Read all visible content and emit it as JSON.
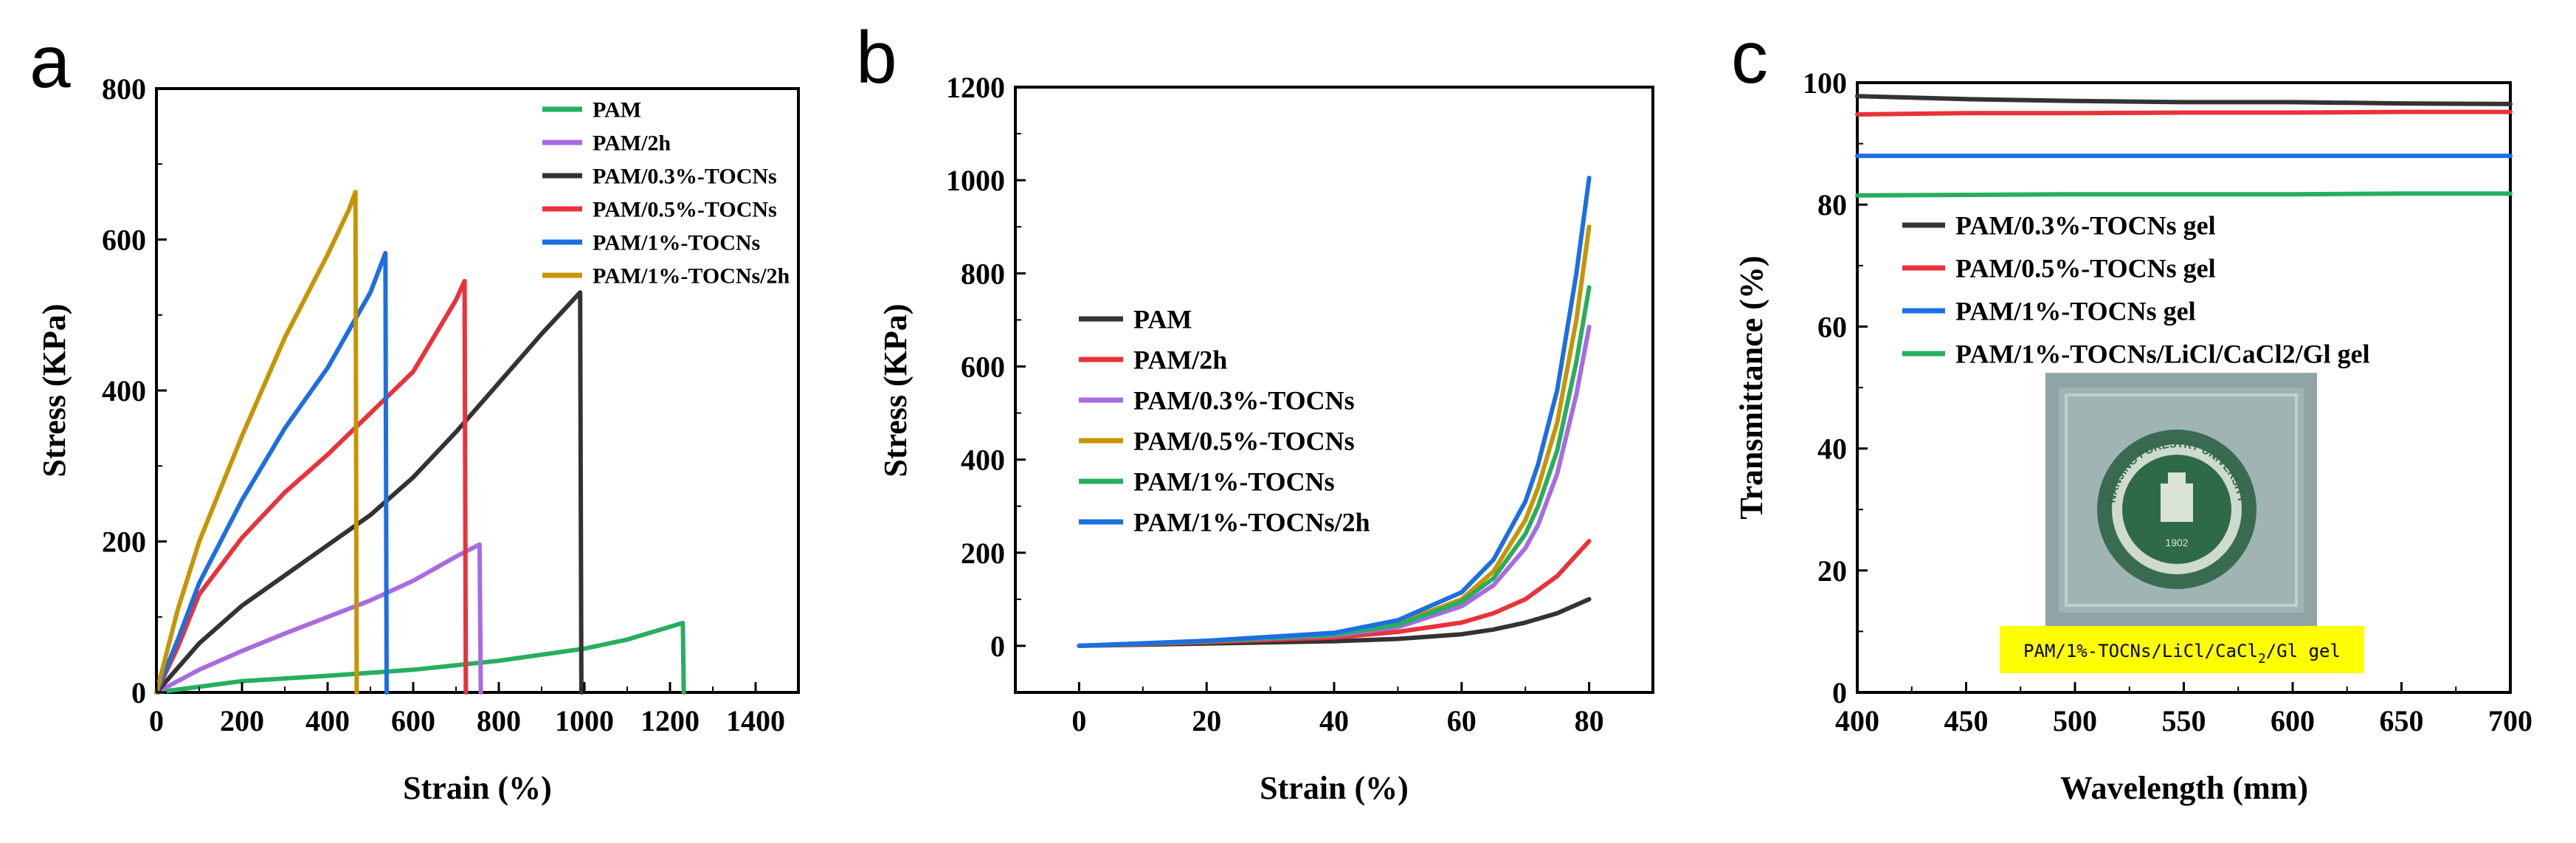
{
  "panels": [
    {
      "letter": "a"
    },
    {
      "letter": "b"
    },
    {
      "letter": "c"
    }
  ],
  "colors": {
    "green": "#27ae60",
    "purple": "#a86be0",
    "black": "#333333",
    "red": "#e8333a",
    "blue": "#1c6fe0",
    "gold": "#c79500",
    "caption_bg": "#ffff00"
  },
  "chart_data": [
    {
      "type": "line",
      "panel": "a",
      "title": "",
      "xlabel": "Strain (%)",
      "ylabel": "Stress (KPa)",
      "xlim": [
        0,
        1500
      ],
      "ylim": [
        0,
        800
      ],
      "xticks": [
        0,
        200,
        400,
        600,
        800,
        1000,
        1200,
        1400
      ],
      "yticks": [
        0,
        200,
        400,
        600,
        800
      ],
      "legend": "top-right",
      "series": [
        {
          "name": "PAM",
          "color": "green",
          "x": [
            0,
            200,
            400,
            600,
            800,
            1000,
            1100,
            1230,
            1232
          ],
          "y": [
            0,
            15,
            22,
            30,
            42,
            58,
            70,
            92,
            0
          ]
        },
        {
          "name": "PAM/2h",
          "color": "purple",
          "x": [
            0,
            100,
            200,
            300,
            400,
            500,
            600,
            700,
            755,
            758
          ],
          "y": [
            0,
            30,
            55,
            78,
            100,
            122,
            148,
            180,
            196,
            0
          ]
        },
        {
          "name": "PAM/0.3%-TOCNs",
          "color": "black",
          "x": [
            0,
            100,
            200,
            300,
            400,
            500,
            600,
            700,
            800,
            900,
            990,
            993
          ],
          "y": [
            0,
            65,
            115,
            155,
            195,
            235,
            285,
            345,
            410,
            475,
            530,
            0
          ]
        },
        {
          "name": "PAM/0.5%-TOCNs",
          "color": "red",
          "x": [
            0,
            50,
            100,
            200,
            300,
            400,
            500,
            600,
            700,
            720,
            723
          ],
          "y": [
            0,
            60,
            130,
            205,
            265,
            315,
            370,
            425,
            520,
            545,
            0
          ]
        },
        {
          "name": "PAM/1%-TOCNs",
          "color": "blue",
          "x": [
            0,
            50,
            100,
            200,
            300,
            400,
            500,
            535,
            538
          ],
          "y": [
            0,
            70,
            145,
            255,
            350,
            430,
            530,
            582,
            0
          ]
        },
        {
          "name": "PAM/1%-TOCNs/2h",
          "color": "gold",
          "x": [
            0,
            50,
            100,
            200,
            300,
            400,
            450,
            465,
            468
          ],
          "y": [
            0,
            110,
            200,
            340,
            470,
            580,
            640,
            663,
            0
          ]
        }
      ]
    },
    {
      "type": "line",
      "panel": "b",
      "title": "",
      "xlabel": "Strain (%)",
      "ylabel": "Stress (KPa)",
      "xlim": [
        -10,
        90
      ],
      "ylim": [
        -100,
        1200
      ],
      "xticks": [
        0,
        20,
        40,
        60,
        80
      ],
      "yticks": [
        0,
        200,
        400,
        600,
        800,
        1000,
        1200
      ],
      "legend": "center-left",
      "series": [
        {
          "name": "PAM",
          "color": "black",
          "x": [
            0,
            20,
            40,
            50,
            60,
            65,
            70,
            75,
            80
          ],
          "y": [
            0,
            5,
            10,
            15,
            25,
            35,
            50,
            70,
            100
          ]
        },
        {
          "name": "PAM/2h",
          "color": "red",
          "x": [
            0,
            20,
            40,
            50,
            60,
            65,
            70,
            75,
            80
          ],
          "y": [
            0,
            8,
            18,
            30,
            50,
            70,
            100,
            150,
            225
          ]
        },
        {
          "name": "PAM/0.3%-TOCNs",
          "color": "purple",
          "x": [
            0,
            20,
            40,
            50,
            60,
            65,
            70,
            72,
            75,
            78,
            80
          ],
          "y": [
            0,
            10,
            22,
            40,
            85,
            130,
            210,
            260,
            370,
            540,
            685
          ]
        },
        {
          "name": "PAM/0.5%-TOCNs",
          "color": "gold",
          "x": [
            0,
            20,
            40,
            50,
            60,
            65,
            70,
            72,
            75,
            78,
            80
          ],
          "y": [
            0,
            10,
            25,
            48,
            100,
            160,
            270,
            340,
            480,
            700,
            900
          ]
        },
        {
          "name": "PAM/1%-TOCNs",
          "color": "green",
          "x": [
            0,
            20,
            40,
            50,
            60,
            65,
            70,
            72,
            75,
            78,
            80
          ],
          "y": [
            0,
            10,
            24,
            45,
            95,
            145,
            240,
            300,
            420,
            610,
            770
          ]
        },
        {
          "name": "PAM/1%-TOCNs/2h",
          "color": "blue",
          "x": [
            0,
            20,
            40,
            50,
            60,
            65,
            70,
            72,
            75,
            78,
            80
          ],
          "y": [
            0,
            11,
            28,
            55,
            115,
            185,
            310,
            390,
            550,
            800,
            1005
          ]
        }
      ]
    },
    {
      "type": "line",
      "panel": "c",
      "title": "",
      "xlabel": "Wavelength (mm)",
      "ylabel": "Transmittance (%)",
      "xlim": [
        400,
        700
      ],
      "ylim": [
        0,
        100
      ],
      "xticks": [
        400,
        450,
        500,
        550,
        600,
        650,
        700
      ],
      "yticks": [
        0,
        20,
        40,
        60,
        80,
        100
      ],
      "legend": "upper-left",
      "series": [
        {
          "name": "PAM/0.3%-TOCNs gel",
          "color": "black",
          "x": [
            400,
            450,
            500,
            550,
            600,
            650,
            700
          ],
          "y": [
            97.8,
            97.3,
            97.0,
            96.8,
            96.8,
            96.6,
            96.5
          ]
        },
        {
          "name": "PAM/0.5%-TOCNs gel",
          "color": "red",
          "x": [
            400,
            450,
            500,
            550,
            600,
            650,
            700
          ],
          "y": [
            94.8,
            95.0,
            95.0,
            95.1,
            95.1,
            95.2,
            95.2
          ]
        },
        {
          "name": "PAM/1%-TOCNs gel",
          "color": "blue",
          "x": [
            400,
            450,
            500,
            550,
            600,
            650,
            700
          ],
          "y": [
            88.0,
            88.0,
            88.0,
            88.0,
            88.0,
            88.0,
            88.0
          ]
        },
        {
          "name": "PAM/1%-TOCNs/LiCl/CaCl2/Gl gel",
          "color": "green",
          "x": [
            400,
            450,
            500,
            550,
            600,
            650,
            700
          ],
          "y": [
            81.5,
            81.6,
            81.7,
            81.7,
            81.7,
            81.8,
            81.8
          ]
        }
      ],
      "inset_photo": {
        "caption_parts": [
          "PAM/1%-TOCNs/LiCl/CaCl",
          "2",
          "/Gl gel"
        ],
        "emblem_text": "NANJING FORESTRY UNIVERSITY",
        "emblem_year": "1902"
      }
    }
  ]
}
